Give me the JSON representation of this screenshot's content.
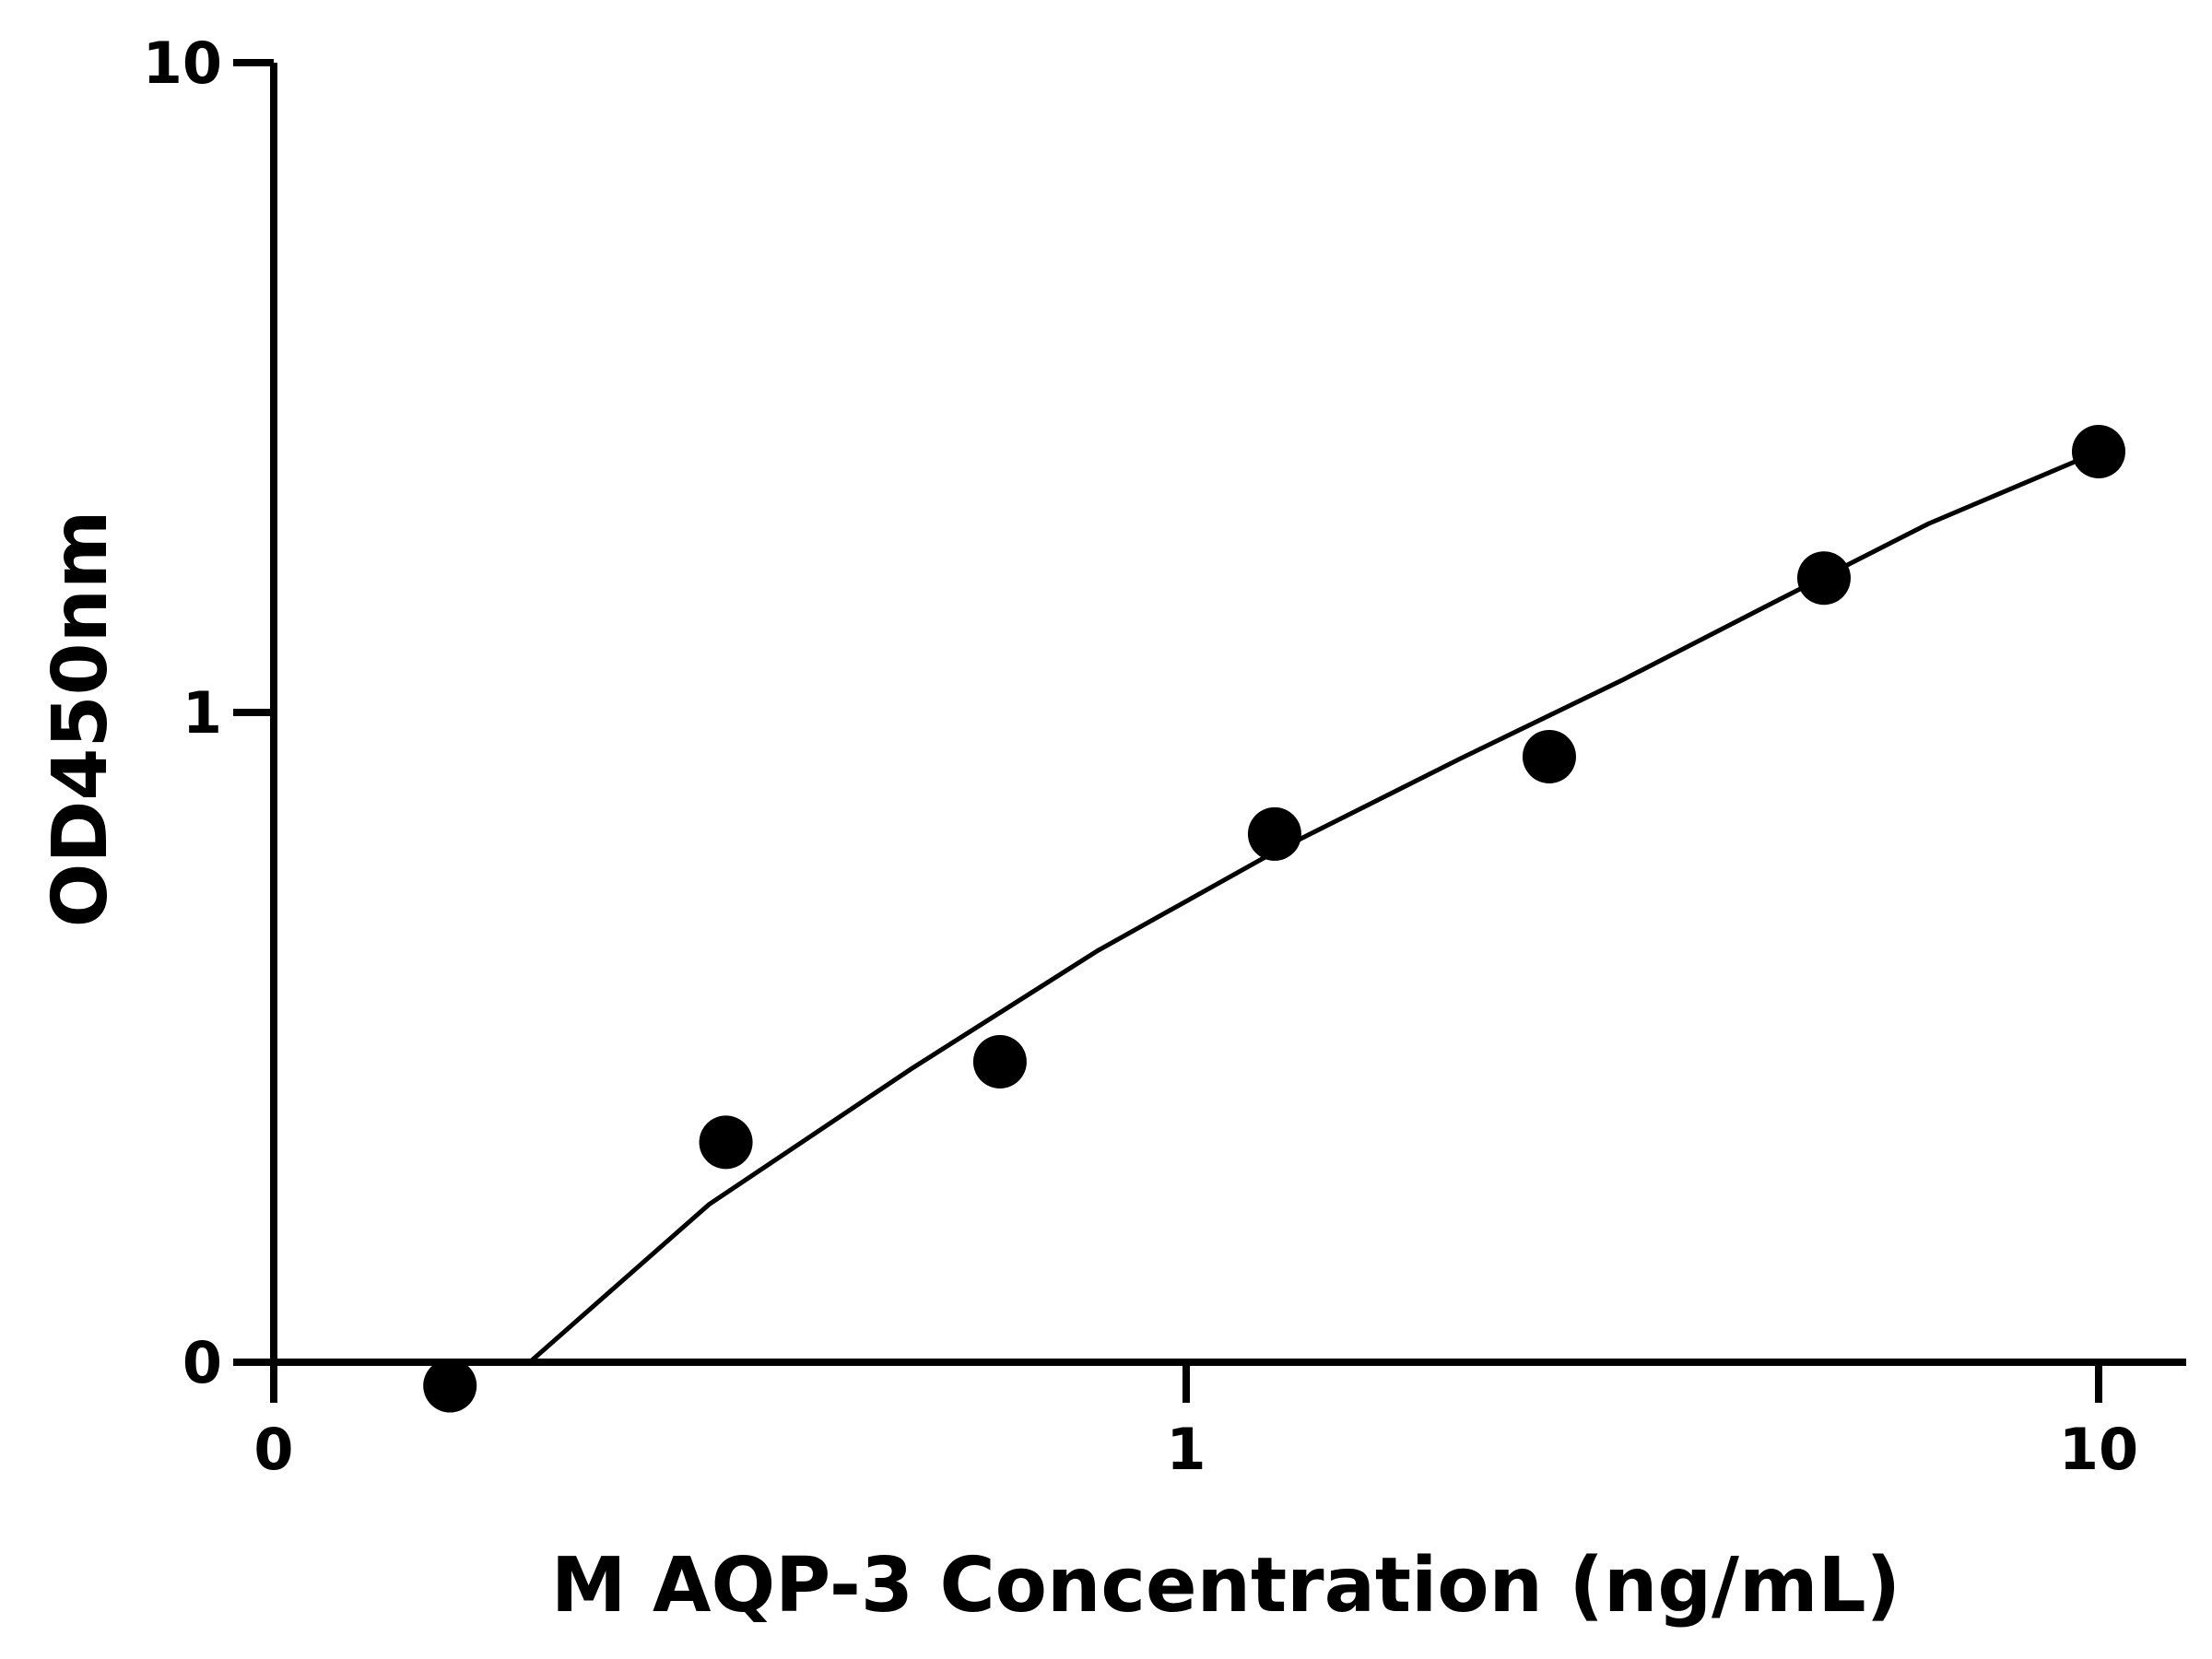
{
  "chart_data": {
    "type": "scatter",
    "xlabel": "M AQP-3 Concentration (ng/mL)",
    "ylabel": "OD450nm",
    "x_scale": "log",
    "y_scale": "log",
    "xlim": [
      0.1,
      10
    ],
    "ylim": [
      0.1,
      10
    ],
    "x_ticks": [
      {
        "value": 0.1,
        "label": "0"
      },
      {
        "value": 1,
        "label": "1"
      },
      {
        "value": 10,
        "label": "10"
      }
    ],
    "y_ticks": [
      {
        "value": 0.1,
        "label": "0"
      },
      {
        "value": 1,
        "label": "1"
      },
      {
        "value": 10,
        "label": "10"
      }
    ],
    "grid": false,
    "series": [
      {
        "points": [
          {
            "x": 0.156,
            "y": 0.092
          },
          {
            "x": 0.313,
            "y": 0.218
          },
          {
            "x": 0.625,
            "y": 0.29
          },
          {
            "x": 1.25,
            "y": 0.65
          },
          {
            "x": 2.5,
            "y": 0.855
          },
          {
            "x": 5,
            "y": 1.61
          },
          {
            "x": 10,
            "y": 2.52
          }
        ],
        "fit_curve": [
          {
            "x": 0.19,
            "y": 0.0995
          },
          {
            "x": 0.3,
            "y": 0.175
          },
          {
            "x": 0.5,
            "y": 0.283
          },
          {
            "x": 0.8,
            "y": 0.43
          },
          {
            "x": 1.25,
            "y": 0.61
          },
          {
            "x": 2.0,
            "y": 0.85
          },
          {
            "x": 3.0,
            "y": 1.12
          },
          {
            "x": 4.5,
            "y": 1.5
          },
          {
            "x": 6.5,
            "y": 1.95
          },
          {
            "x": 10,
            "y": 2.52
          }
        ]
      }
    ]
  }
}
